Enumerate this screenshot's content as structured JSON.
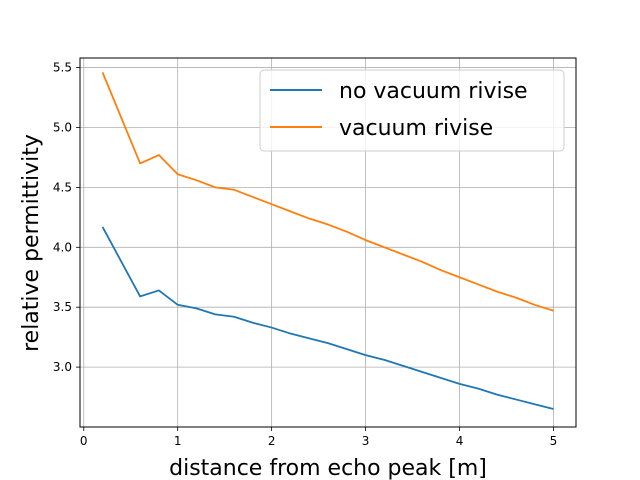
{
  "chart_data": {
    "type": "line",
    "title": "",
    "xlabel": "distance from echo peak [m]",
    "ylabel": "relative permittivity",
    "xlim": [
      -0.04,
      5.24
    ],
    "ylim": [
      2.5,
      5.58
    ],
    "xticks": [
      0,
      1,
      2,
      3,
      4,
      5
    ],
    "xtick_labels": [
      "0",
      "1",
      "2",
      "3",
      "4",
      "5"
    ],
    "yticks": [
      3.0,
      3.5,
      4.0,
      4.5,
      5.0,
      5.5
    ],
    "ytick_labels": [
      "3.0",
      "3.5",
      "4.0",
      "4.5",
      "5.0",
      "5.5"
    ],
    "grid": true,
    "legend_position": "top-right",
    "series": [
      {
        "name": "no vacuum rivise",
        "color": "#1f77b4",
        "x": [
          0.2,
          0.4,
          0.6,
          0.8,
          1.0,
          1.2,
          1.4,
          1.6,
          1.8,
          2.0,
          2.2,
          2.4,
          2.6,
          2.8,
          3.0,
          3.2,
          3.4,
          3.6,
          3.8,
          4.0,
          4.2,
          4.4,
          4.6,
          4.8,
          5.0
        ],
        "y": [
          4.17,
          3.88,
          3.59,
          3.64,
          3.52,
          3.49,
          3.44,
          3.42,
          3.37,
          3.33,
          3.28,
          3.24,
          3.2,
          3.15,
          3.1,
          3.06,
          3.01,
          2.96,
          2.91,
          2.86,
          2.82,
          2.77,
          2.73,
          2.69,
          2.65
        ]
      },
      {
        "name": "vacuum rivise",
        "color": "#ff7f0e",
        "x": [
          0.2,
          0.4,
          0.6,
          0.8,
          1.0,
          1.2,
          1.4,
          1.6,
          1.8,
          2.0,
          2.2,
          2.4,
          2.6,
          2.8,
          3.0,
          3.2,
          3.4,
          3.6,
          3.8,
          4.0,
          4.2,
          4.4,
          4.6,
          4.8,
          5.0
        ],
        "y": [
          5.46,
          5.08,
          4.7,
          4.77,
          4.61,
          4.56,
          4.5,
          4.48,
          4.42,
          4.36,
          4.3,
          4.24,
          4.19,
          4.13,
          4.06,
          4.0,
          3.94,
          3.88,
          3.81,
          3.75,
          3.69,
          3.63,
          3.58,
          3.52,
          3.47
        ]
      }
    ]
  }
}
